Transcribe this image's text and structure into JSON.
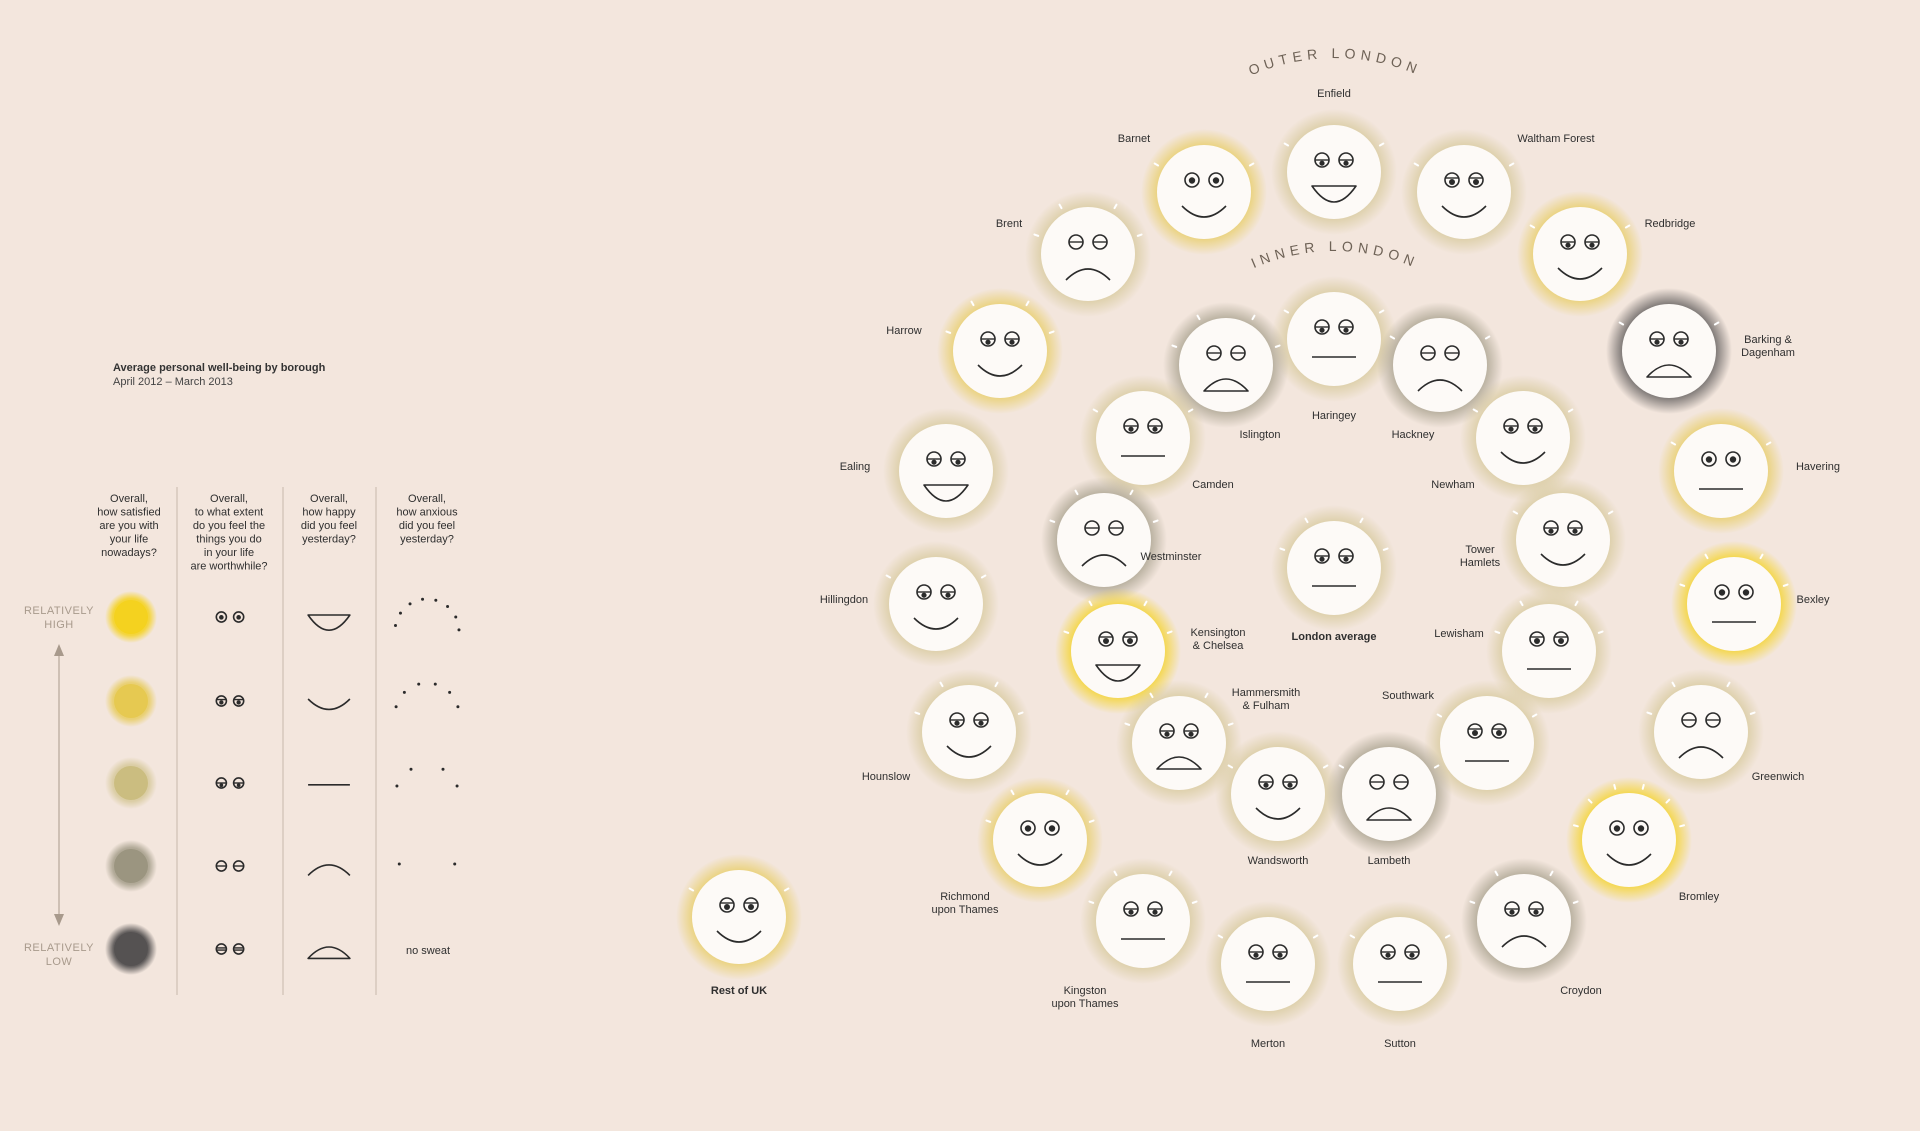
{
  "legend": {
    "title": "Average personal well-being by borough",
    "subtitle": "April 2012 – March 2013",
    "questions": [
      [
        "Overall,",
        "how satisfied",
        "are you with",
        "your life",
        "nowadays?"
      ],
      [
        "Overall,",
        "to what extent",
        "do you feel the",
        "things you do",
        "in your life",
        "are worthwhile?"
      ],
      [
        "Overall,",
        "how happy",
        "did you feel",
        "yesterday?"
      ],
      [
        "Overall,",
        "how anxious",
        "did you feel",
        "yesterday?"
      ]
    ],
    "high_label": [
      "RELATIVELY",
      "HIGH"
    ],
    "low_label": [
      "RELATIVELY",
      "LOW"
    ],
    "no_sweat_label": "no sweat",
    "level_colors": [
      "#f4d21f",
      "#e6c951",
      "#cbbd80",
      "#9b9580",
      "#555252"
    ]
  },
  "ring_titles": {
    "outer": "OUTER LONDON",
    "inner": "INNER LONDON"
  },
  "colors": {
    "background": "#f3e6dd",
    "face": "#fdfaf7",
    "stroke": "#2b2b2b"
  },
  "faces": [
    {
      "id": "enfield",
      "label": [
        "Enfield"
      ],
      "s": 3,
      "w": 3,
      "h": 1,
      "a": 2
    },
    {
      "id": "barnet",
      "label": [
        "Barnet"
      ],
      "s": 2,
      "w": 1,
      "h": 2,
      "a": 2
    },
    {
      "id": "waltham-forest",
      "label": [
        "Waltham Forest"
      ],
      "s": 3,
      "w": 2,
      "h": 2,
      "a": 2
    },
    {
      "id": "brent",
      "label": [
        "Brent"
      ],
      "s": 3,
      "w": 4,
      "h": 4,
      "a": 3
    },
    {
      "id": "redbridge",
      "label": [
        "Redbridge"
      ],
      "s": 2,
      "w": 3,
      "h": 2,
      "a": 2
    },
    {
      "id": "harrow",
      "label": [
        "Harrow"
      ],
      "s": 2,
      "w": 3,
      "h": 2,
      "a": 3
    },
    {
      "id": "barking-dagenham",
      "label": [
        "Barking &",
        "Dagenham"
      ],
      "s": 5,
      "w": 3,
      "h": 5,
      "a": 2
    },
    {
      "id": "ealing",
      "label": [
        "Ealing"
      ],
      "s": 3,
      "w": 3,
      "h": 1,
      "a": 1
    },
    {
      "id": "havering",
      "label": [
        "Havering"
      ],
      "s": 2,
      "w": 1,
      "h": 3,
      "a": 2
    },
    {
      "id": "hillingdon",
      "label": [
        "Hillingdon"
      ],
      "s": 3,
      "w": 3,
      "h": 2,
      "a": 2
    },
    {
      "id": "bexley",
      "label": [
        "Bexley"
      ],
      "s": 1,
      "w": 1,
      "h": 3,
      "a": 3
    },
    {
      "id": "hounslow",
      "label": [
        "Hounslow"
      ],
      "s": 3,
      "w": 3,
      "h": 2,
      "a": 3
    },
    {
      "id": "greenwich",
      "label": [
        "Greenwich"
      ],
      "s": 3,
      "w": 4,
      "h": 4,
      "a": 3
    },
    {
      "id": "richmond",
      "label": [
        "Richmond",
        "upon Thames"
      ],
      "s": 2,
      "w": 1,
      "h": 2,
      "a": 3
    },
    {
      "id": "bromley",
      "label": [
        "Bromley"
      ],
      "s": 1,
      "w": 1,
      "h": 2,
      "a": 4
    },
    {
      "id": "kingston",
      "label": [
        "Kingston",
        "upon Thames"
      ],
      "s": 3,
      "w": 3,
      "h": 3,
      "a": 3
    },
    {
      "id": "croydon",
      "label": [
        "Croydon"
      ],
      "s": 4,
      "w": 3,
      "h": 4,
      "a": 3
    },
    {
      "id": "merton",
      "label": [
        "Merton"
      ],
      "s": 3,
      "w": 3,
      "h": 3,
      "a": 2
    },
    {
      "id": "sutton",
      "label": [
        "Sutton"
      ],
      "s": 3,
      "w": 3,
      "h": 3,
      "a": 2
    },
    {
      "id": "haringey",
      "label": [
        "Haringey"
      ],
      "s": 3,
      "w": 3,
      "h": 3,
      "a": 2
    },
    {
      "id": "islington",
      "label": [
        "Islington"
      ],
      "s": 4,
      "w": 4,
      "h": 5,
      "a": 3
    },
    {
      "id": "hackney",
      "label": [
        "Hackney"
      ],
      "s": 4,
      "w": 4,
      "h": 4,
      "a": 2
    },
    {
      "id": "camden",
      "label": [
        "Camden"
      ],
      "s": 3,
      "w": 3,
      "h": 3,
      "a": 2
    },
    {
      "id": "newham",
      "label": [
        "Newham"
      ],
      "s": 3,
      "w": 3,
      "h": 2,
      "a": 2
    },
    {
      "id": "westminster",
      "label": [
        "Westminster"
      ],
      "s": 4,
      "w": 4,
      "h": 4,
      "a": 3
    },
    {
      "id": "london-average",
      "label": [
        "London average"
      ],
      "s": 3,
      "w": 3,
      "h": 3,
      "a": 3
    },
    {
      "id": "tower-hamlets",
      "label": [
        "Tower",
        "Hamlets"
      ],
      "s": 3,
      "w": 3,
      "h": 2,
      "a": 2
    },
    {
      "id": "kensington-chelsea",
      "label": [
        "Kensington",
        "& Chelsea"
      ],
      "s": 1,
      "w": 2,
      "h": 1,
      "a": 3
    },
    {
      "id": "lewisham",
      "label": [
        "Lewisham"
      ],
      "s": 3,
      "w": 2,
      "h": 3,
      "a": 3
    },
    {
      "id": "hammersmith-fulham",
      "label": [
        "Hammersmith",
        "& Fulham"
      ],
      "s": 3,
      "w": 3,
      "h": 5,
      "a": 3
    },
    {
      "id": "southwark",
      "label": [
        "Southwark"
      ],
      "s": 3,
      "w": 2,
      "h": 3,
      "a": 2
    },
    {
      "id": "wandsworth",
      "label": [
        "Wandsworth"
      ],
      "s": 3,
      "w": 3,
      "h": 2,
      "a": 2
    },
    {
      "id": "lambeth",
      "label": [
        "Lambeth"
      ],
      "s": 4,
      "w": 4,
      "h": 5,
      "a": 2
    },
    {
      "id": "rest-of-uk",
      "label": [
        "Rest of UK"
      ],
      "s": 2,
      "w": 2,
      "h": 2,
      "a": 2
    }
  ]
}
